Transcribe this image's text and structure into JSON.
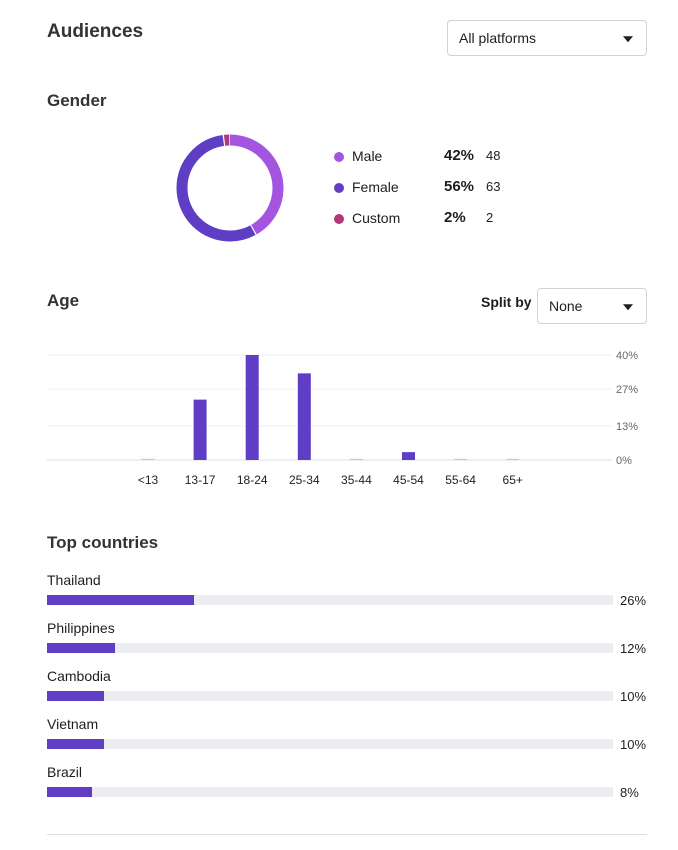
{
  "header": {
    "title": "Audiences",
    "platform_select": "All platforms"
  },
  "gender": {
    "title": "Gender",
    "items": [
      {
        "label": "Male",
        "pct": "42%",
        "count": "48",
        "value": 42,
        "color": "#a355e0"
      },
      {
        "label": "Female",
        "pct": "56%",
        "count": "63",
        "value": 56,
        "color": "#5f3dc4"
      },
      {
        "label": "Custom",
        "pct": "2%",
        "count": "2",
        "value": 2,
        "color": "#b3387a"
      }
    ]
  },
  "age": {
    "title": "Age",
    "split_label": "Split by",
    "split_value": "None"
  },
  "chart_data": {
    "type": "bar",
    "categories": [
      "<13",
      "13-17",
      "18-24",
      "25-34",
      "35-44",
      "45-54",
      "55-64",
      "65+"
    ],
    "values": [
      0,
      23,
      40,
      33,
      0,
      3,
      0,
      0
    ],
    "ylim": [
      0,
      40
    ],
    "yticks": [
      "40%",
      "27%",
      "13%",
      "0%"
    ],
    "ytick_values": [
      40,
      27,
      13,
      0
    ],
    "color": "#5f3dc4",
    "grid": true
  },
  "countries": {
    "title": "Top countries",
    "items": [
      {
        "name": "Thailand",
        "pct": "26%",
        "value": 26
      },
      {
        "name": "Philippines",
        "pct": "12%",
        "value": 12
      },
      {
        "name": "Cambodia",
        "pct": "10%",
        "value": 10
      },
      {
        "name": "Vietnam",
        "pct": "10%",
        "value": 10
      },
      {
        "name": "Brazil",
        "pct": "8%",
        "value": 8
      }
    ]
  }
}
